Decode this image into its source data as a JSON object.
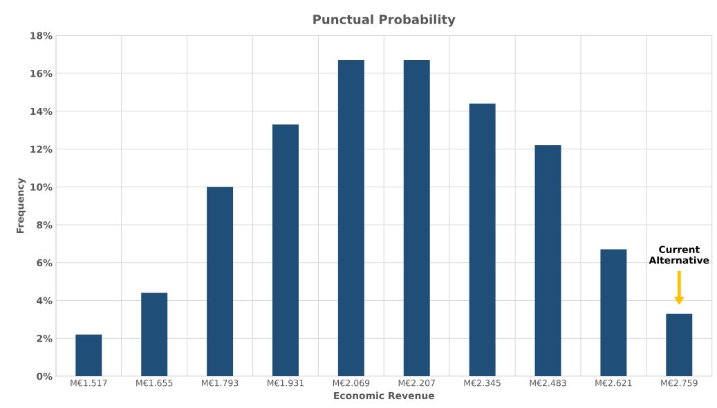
{
  "chart_data": {
    "type": "bar",
    "title": "Punctual Probability",
    "xlabel": "Economic Revenue",
    "ylabel": "Frequency",
    "categories": [
      "M€1.517",
      "M€1.655",
      "M€1.793",
      "M€1.931",
      "M€2.069",
      "M€2.207",
      "M€2.345",
      "M€2.483",
      "M€2.621",
      "M€2.759"
    ],
    "values": [
      2.2,
      4.4,
      10.0,
      13.3,
      16.7,
      16.7,
      14.4,
      12.2,
      6.7,
      3.3
    ],
    "color": "#1f4e79",
    "ylim": [
      0,
      18
    ],
    "yticks": [
      {
        "value": 0,
        "label": "0%"
      },
      {
        "value": 2,
        "label": "2%"
      },
      {
        "value": 4,
        "label": "4%"
      },
      {
        "value": 6,
        "label": "6%"
      },
      {
        "value": 8,
        "label": "8%"
      },
      {
        "value": 10,
        "label": "10%"
      },
      {
        "value": 12,
        "label": "12%"
      },
      {
        "value": 14,
        "label": "14%"
      },
      {
        "value": 16,
        "label": "16%"
      },
      {
        "value": 18,
        "label": "18%"
      }
    ],
    "grid": true,
    "annotations": [
      "Current\nAlternative"
    ]
  }
}
